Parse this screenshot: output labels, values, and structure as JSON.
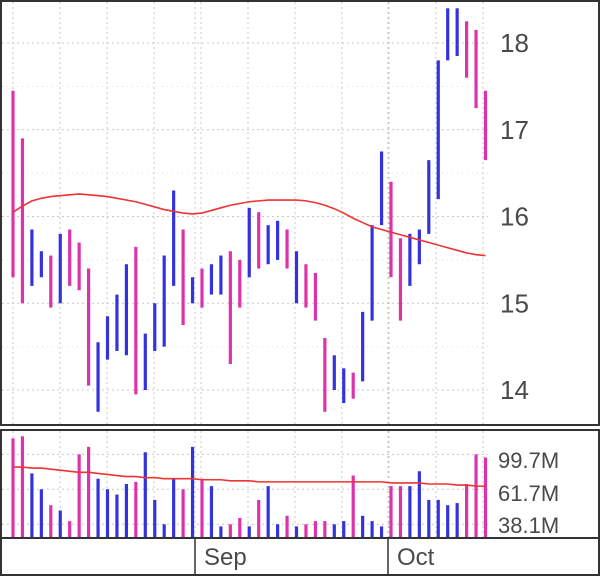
{
  "chart_data": [
    {
      "type": "ohlc",
      "panel": "price",
      "title": "",
      "y_ticks": [
        14,
        15,
        16,
        17,
        18
      ],
      "ylim": [
        13.75,
        18.45
      ],
      "grid": true,
      "x_labels": [
        "Sep",
        "Oct"
      ],
      "colors": {
        "up": "#3333dd",
        "down": "#dd33aa",
        "moving_average": "#ee3333"
      },
      "bars": [
        {
          "low": 15.3,
          "high": 17.45,
          "direction": "down"
        },
        {
          "low": 15.0,
          "high": 16.9,
          "direction": "down"
        },
        {
          "low": 15.2,
          "high": 15.85,
          "direction": "up"
        },
        {
          "low": 15.3,
          "high": 15.6,
          "direction": "up"
        },
        {
          "low": 14.95,
          "high": 15.55,
          "direction": "down"
        },
        {
          "low": 15.0,
          "high": 15.8,
          "direction": "up"
        },
        {
          "low": 15.2,
          "high": 15.85,
          "direction": "down"
        },
        {
          "low": 15.15,
          "high": 15.7,
          "direction": "down"
        },
        {
          "low": 14.05,
          "high": 15.4,
          "direction": "down"
        },
        {
          "low": 13.75,
          "high": 14.55,
          "direction": "up"
        },
        {
          "low": 14.35,
          "high": 14.85,
          "direction": "up"
        },
        {
          "low": 14.45,
          "high": 15.1,
          "direction": "up"
        },
        {
          "low": 14.4,
          "high": 15.45,
          "direction": "up"
        },
        {
          "low": 13.95,
          "high": 15.65,
          "direction": "down"
        },
        {
          "low": 14.0,
          "high": 14.65,
          "direction": "up"
        },
        {
          "low": 14.45,
          "high": 15.0,
          "direction": "up"
        },
        {
          "low": 14.5,
          "high": 15.55,
          "direction": "up"
        },
        {
          "low": 15.2,
          "high": 16.3,
          "direction": "up"
        },
        {
          "low": 14.75,
          "high": 15.85,
          "direction": "down"
        },
        {
          "low": 15.0,
          "high": 15.3,
          "direction": "up"
        },
        {
          "low": 14.95,
          "high": 15.4,
          "direction": "down"
        },
        {
          "low": 15.1,
          "high": 15.45,
          "direction": "up"
        },
        {
          "low": 15.1,
          "high": 15.55,
          "direction": "up"
        },
        {
          "low": 14.3,
          "high": 15.6,
          "direction": "down"
        },
        {
          "low": 14.95,
          "high": 15.5,
          "direction": "down"
        },
        {
          "low": 15.3,
          "high": 16.1,
          "direction": "up"
        },
        {
          "low": 15.4,
          "high": 16.05,
          "direction": "down"
        },
        {
          "low": 15.45,
          "high": 15.9,
          "direction": "up"
        },
        {
          "low": 15.5,
          "high": 15.95,
          "direction": "up"
        },
        {
          "low": 15.4,
          "high": 15.85,
          "direction": "down"
        },
        {
          "low": 15.0,
          "high": 15.6,
          "direction": "up"
        },
        {
          "low": 14.95,
          "high": 15.45,
          "direction": "down"
        },
        {
          "low": 14.8,
          "high": 15.35,
          "direction": "down"
        },
        {
          "low": 13.75,
          "high": 14.6,
          "direction": "down"
        },
        {
          "low": 14.0,
          "high": 14.4,
          "direction": "up"
        },
        {
          "low": 13.85,
          "high": 14.25,
          "direction": "up"
        },
        {
          "low": 13.9,
          "high": 14.2,
          "direction": "down"
        },
        {
          "low": 14.1,
          "high": 14.9,
          "direction": "up"
        },
        {
          "low": 14.8,
          "high": 15.9,
          "direction": "up"
        },
        {
          "low": 15.9,
          "high": 16.75,
          "direction": "up"
        },
        {
          "low": 15.3,
          "high": 16.4,
          "direction": "down"
        },
        {
          "low": 14.8,
          "high": 15.75,
          "direction": "down"
        },
        {
          "low": 15.2,
          "high": 15.8,
          "direction": "up"
        },
        {
          "low": 15.45,
          "high": 15.85,
          "direction": "up"
        },
        {
          "low": 15.8,
          "high": 16.65,
          "direction": "up"
        },
        {
          "low": 16.2,
          "high": 17.8,
          "direction": "up"
        },
        {
          "low": 17.8,
          "high": 18.4,
          "direction": "up"
        },
        {
          "low": 17.85,
          "high": 18.4,
          "direction": "up"
        },
        {
          "low": 17.6,
          "high": 18.25,
          "direction": "down"
        },
        {
          "low": 17.25,
          "high": 18.15,
          "direction": "down"
        },
        {
          "low": 16.65,
          "high": 17.45,
          "direction": "down"
        }
      ],
      "moving_average": [
        16.05,
        16.12,
        16.18,
        16.21,
        16.23,
        16.24,
        16.25,
        16.26,
        16.25,
        16.24,
        16.23,
        16.21,
        16.19,
        16.17,
        16.14,
        16.11,
        16.08,
        16.06,
        16.04,
        16.03,
        16.04,
        16.07,
        16.1,
        16.13,
        16.15,
        16.17,
        16.18,
        16.19,
        16.19,
        16.19,
        16.19,
        16.18,
        16.16,
        16.13,
        16.09,
        16.04,
        15.98,
        15.93,
        15.88,
        15.85,
        15.82,
        15.79,
        15.76,
        15.73,
        15.7,
        15.67,
        15.64,
        15.61,
        15.58,
        15.56,
        15.55
      ]
    },
    {
      "type": "bar",
      "panel": "volume",
      "y_ticks": [
        "99.7M",
        "61.7M",
        "38.1M"
      ],
      "grid": true,
      "note": "volume relative to panel scale (0 = bottom, 1 = top)",
      "values": [
        0.93,
        0.95,
        0.6,
        0.45,
        0.3,
        0.25,
        0.15,
        0.78,
        0.85,
        0.55,
        0.45,
        0.4,
        0.5,
        0.52,
        0.8,
        0.35,
        0.12,
        0.55,
        0.45,
        0.85,
        0.55,
        0.48,
        0.1,
        0.12,
        0.18,
        0.1,
        0.35,
        0.48,
        0.12,
        0.2,
        0.1,
        0.12,
        0.15,
        0.15,
        0.12,
        0.15,
        0.58,
        0.2,
        0.15,
        0.1,
        0.48,
        0.48,
        0.48,
        0.62,
        0.35,
        0.35,
        0.3,
        0.32,
        0.5,
        0.78,
        0.75
      ],
      "moving_average": [
        0.66,
        0.66,
        0.65,
        0.65,
        0.64,
        0.63,
        0.62,
        0.61,
        0.61,
        0.6,
        0.59,
        0.58,
        0.57,
        0.57,
        0.56,
        0.56,
        0.55,
        0.55,
        0.55,
        0.55,
        0.54,
        0.54,
        0.54,
        0.53,
        0.53,
        0.53,
        0.52,
        0.52,
        0.52,
        0.52,
        0.52,
        0.52,
        0.52,
        0.52,
        0.52,
        0.52,
        0.52,
        0.52,
        0.52,
        0.52,
        0.51,
        0.51,
        0.51,
        0.51,
        0.5,
        0.5,
        0.5,
        0.49,
        0.49,
        0.48,
        0.48
      ],
      "colors": {
        "up": "#3333dd",
        "down": "#dd33aa",
        "moving_average": "#ee3333"
      }
    }
  ]
}
